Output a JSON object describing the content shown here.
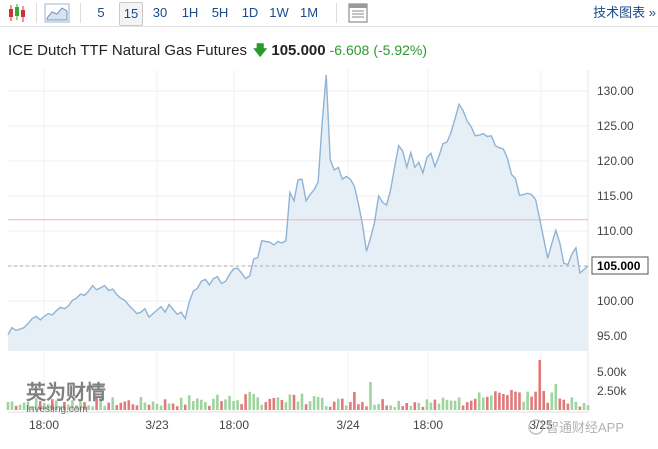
{
  "toolbar": {
    "candle_icon": "candlestick-icon",
    "area_icon": "area-chart-icon",
    "intervals": [
      "5",
      "15",
      "30",
      "1H",
      "5H",
      "1D",
      "1W",
      "1M"
    ],
    "selected_interval": "15",
    "table_icon": "table-icon",
    "tech_chart_label": "技术图表 »"
  },
  "header": {
    "instrument": "ICE Dutch TTF Natural Gas Futures",
    "price": "105.000",
    "change": "-6.608",
    "change_pct": "(-5.92%)"
  },
  "watermark": {
    "cn": "英为财情",
    "en": "Investing.com",
    "bottom_right": "智通财经APP"
  },
  "colors": {
    "line": "#8fb4d6",
    "area": "#e6eef6",
    "ref_line": "#f2b3b3",
    "vol_up": "#9fd49f",
    "vol_down": "#e07a7a",
    "down_text": "#2a9a2a",
    "link": "#1a4a8a"
  },
  "chart_data": [
    {
      "type": "area",
      "title": "",
      "x_tick_labels": [
        "18:00",
        "3/23",
        "18:00",
        "3/24",
        "18:00",
        "3/25"
      ],
      "ylim": [
        93,
        133
      ],
      "y_ticks": [
        95.0,
        100.0,
        105.0,
        110.0,
        115.0,
        120.0,
        125.0,
        130.0
      ],
      "y_tick_labels": [
        "95.00",
        "100.00",
        "105.000",
        "110.00",
        "115.00",
        "120.00",
        "125.00",
        "130.00"
      ],
      "current_price": 105.0,
      "current_price_label": "105.000",
      "previous_close": 111.608,
      "grid": true,
      "values": [
        95.2,
        96.2,
        95.8,
        96.0,
        96.2,
        96.8,
        97.5,
        97.8,
        97.3,
        97.8,
        98.2,
        98.0,
        98.6,
        99.1,
        98.9,
        99.3,
        100.1,
        100.4,
        101.0,
        100.8,
        101.4,
        102.2,
        101.6,
        101.9,
        102.2,
        101.5,
        101.7,
        100.9,
        100.4,
        100.1,
        99.4,
        98.8,
        98.2,
        98.4,
        98.9,
        97.7,
        98.2,
        98.7,
        99.2,
        98.4,
        99.5,
        98.8,
        98.1,
        98.4,
        97.5,
        99.9,
        101.4,
        101.8,
        102.8,
        103.1,
        102.3,
        103.2,
        103.5,
        102.5,
        102.8,
        103.8,
        104.6,
        104.7,
        104.0,
        103.2,
        103.6,
        106.0,
        106.2,
        108.6,
        108.5,
        108.4,
        108.0,
        108.5,
        108.3,
        108.6,
        115.5,
        114.3,
        117.3,
        117.4,
        114.3,
        115.2,
        115.9,
        117.0,
        125.5,
        132.3,
        120.2,
        118.7,
        119.1,
        117.4,
        117.8,
        117.4,
        116.4,
        113.9,
        111.0,
        107.1,
        109.0,
        111.2,
        115.0,
        114.1,
        113.7,
        115.9,
        119.2,
        122.2,
        121.4,
        119.1,
        121.2,
        119.1,
        119.8,
        118.3,
        120.5,
        121.1,
        119.2,
        120.7,
        122.5,
        122.7,
        124.1,
        126.1,
        128.1,
        127.2,
        125.7,
        124.9,
        123.6,
        123.7,
        123.9,
        123.5,
        123.6,
        122.2,
        121.9,
        121.7,
        120.4,
        118.1,
        117.5,
        115.1,
        115.2,
        115.4,
        115.2,
        114.5,
        111.7,
        108.9,
        106.1,
        108.2,
        110.1,
        108.3,
        105.4,
        105.2,
        106.7,
        107.6,
        104.0,
        104.5,
        105.0
      ],
      "volume_axis_ticks": [
        "2.50k",
        "5.00k"
      ]
    }
  ]
}
